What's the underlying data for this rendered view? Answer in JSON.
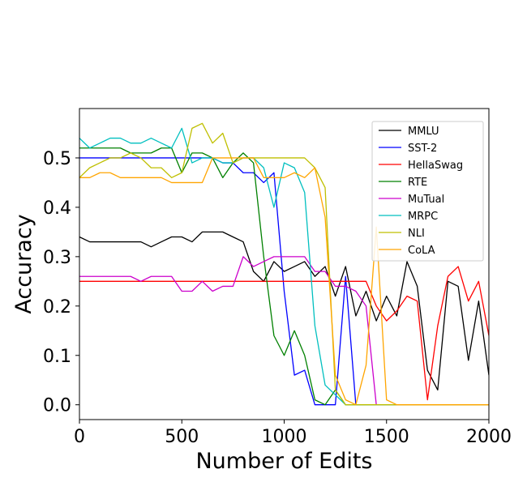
{
  "chart_data": {
    "type": "line",
    "title": "",
    "xlabel": "Number of Edits",
    "ylabel": "Accuracy",
    "xlim": [
      0,
      2000
    ],
    "ylim": [
      -0.03,
      0.6
    ],
    "xticks": [
      0,
      500,
      1000,
      1500,
      2000
    ],
    "xtick_labels": [
      "0",
      "500",
      "1000",
      "1500",
      "2000"
    ],
    "yticks": [
      0.0,
      0.1,
      0.2,
      0.3,
      0.4,
      0.5
    ],
    "ytick_labels": [
      "0.0",
      "0.1",
      "0.2",
      "0.3",
      "0.4",
      "0.5"
    ],
    "grid": false,
    "legend_position": "top-right",
    "series": [
      {
        "name": "MMLU",
        "color": "#000000",
        "x": [
          0,
          50,
          100,
          150,
          200,
          250,
          300,
          350,
          400,
          450,
          500,
          550,
          600,
          650,
          700,
          750,
          800,
          850,
          900,
          950,
          1000,
          1050,
          1100,
          1150,
          1200,
          1250,
          1300,
          1350,
          1400,
          1450,
          1500,
          1550,
          1600,
          1650,
          1700,
          1750,
          1800,
          1850,
          1900,
          1950,
          2000
        ],
        "y": [
          0.34,
          0.33,
          0.33,
          0.33,
          0.33,
          0.33,
          0.33,
          0.32,
          0.33,
          0.34,
          0.34,
          0.33,
          0.35,
          0.35,
          0.35,
          0.34,
          0.33,
          0.27,
          0.25,
          0.29,
          0.27,
          0.28,
          0.29,
          0.26,
          0.28,
          0.22,
          0.28,
          0.18,
          0.23,
          0.17,
          0.22,
          0.18,
          0.29,
          0.24,
          0.07,
          0.03,
          0.25,
          0.24,
          0.09,
          0.21,
          0.06
        ]
      },
      {
        "name": "SST-2",
        "color": "#0000ff",
        "x": [
          0,
          100,
          200,
          300,
          400,
          500,
          600,
          650,
          700,
          750,
          800,
          850,
          900,
          950,
          1000,
          1050,
          1100,
          1150,
          1200,
          1250,
          1300,
          1350,
          1400,
          1500,
          2000
        ],
        "y": [
          0.5,
          0.5,
          0.5,
          0.5,
          0.5,
          0.5,
          0.5,
          0.5,
          0.49,
          0.49,
          0.47,
          0.47,
          0.45,
          0.47,
          0.23,
          0.06,
          0.07,
          0.0,
          0.0,
          0.0,
          0.26,
          0.0,
          0.0,
          0.0,
          0.0
        ]
      },
      {
        "name": "HellaSwag",
        "color": "#ff0000",
        "x": [
          0,
          100,
          200,
          300,
          400,
          500,
          600,
          700,
          800,
          900,
          1000,
          1100,
          1200,
          1300,
          1400,
          1450,
          1500,
          1550,
          1600,
          1650,
          1700,
          1750,
          1800,
          1850,
          1900,
          1950,
          2000
        ],
        "y": [
          0.25,
          0.25,
          0.25,
          0.25,
          0.25,
          0.25,
          0.25,
          0.25,
          0.25,
          0.25,
          0.25,
          0.25,
          0.25,
          0.25,
          0.25,
          0.2,
          0.17,
          0.19,
          0.22,
          0.21,
          0.01,
          0.16,
          0.26,
          0.28,
          0.21,
          0.25,
          0.14
        ]
      },
      {
        "name": "RTE",
        "color": "#008000",
        "x": [
          0,
          50,
          100,
          150,
          200,
          250,
          300,
          350,
          400,
          450,
          500,
          550,
          600,
          650,
          700,
          750,
          800,
          850,
          900,
          950,
          1000,
          1050,
          1100,
          1150,
          1200,
          1250,
          1300,
          1350,
          1400,
          1500,
          2000
        ],
        "y": [
          0.52,
          0.52,
          0.52,
          0.52,
          0.52,
          0.51,
          0.51,
          0.51,
          0.52,
          0.52,
          0.47,
          0.51,
          0.51,
          0.5,
          0.46,
          0.49,
          0.51,
          0.49,
          0.3,
          0.14,
          0.1,
          0.15,
          0.1,
          0.01,
          0.0,
          0.03,
          0.0,
          0.0,
          0.0,
          0.0,
          0.0
        ]
      },
      {
        "name": "MuTual",
        "color": "#cc00cc",
        "x": [
          0,
          50,
          100,
          150,
          200,
          250,
          300,
          350,
          400,
          450,
          500,
          550,
          600,
          650,
          700,
          750,
          800,
          850,
          900,
          950,
          1000,
          1050,
          1100,
          1150,
          1200,
          1250,
          1300,
          1350,
          1400,
          1450,
          1500,
          2000
        ],
        "y": [
          0.26,
          0.26,
          0.26,
          0.26,
          0.26,
          0.26,
          0.25,
          0.26,
          0.26,
          0.26,
          0.23,
          0.23,
          0.25,
          0.23,
          0.24,
          0.24,
          0.3,
          0.28,
          0.29,
          0.3,
          0.3,
          0.3,
          0.3,
          0.27,
          0.27,
          0.24,
          0.24,
          0.23,
          0.2,
          0.0,
          0.0,
          0.0
        ]
      },
      {
        "name": "MRPC",
        "color": "#00bfbf",
        "x": [
          0,
          50,
          100,
          150,
          200,
          250,
          300,
          350,
          400,
          450,
          500,
          550,
          600,
          650,
          700,
          750,
          800,
          850,
          900,
          950,
          1000,
          1050,
          1100,
          1150,
          1200,
          1250,
          1300,
          1350,
          1400,
          1500,
          2000
        ],
        "y": [
          0.54,
          0.52,
          0.53,
          0.54,
          0.54,
          0.53,
          0.53,
          0.54,
          0.53,
          0.52,
          0.56,
          0.49,
          0.5,
          0.5,
          0.49,
          0.49,
          0.5,
          0.5,
          0.48,
          0.4,
          0.49,
          0.48,
          0.43,
          0.16,
          0.04,
          0.02,
          0.0,
          0.0,
          0.0,
          0.0,
          0.0
        ]
      },
      {
        "name": "NLI",
        "color": "#bfbf00",
        "x": [
          0,
          50,
          100,
          150,
          200,
          250,
          300,
          350,
          400,
          450,
          500,
          550,
          600,
          650,
          700,
          750,
          800,
          850,
          900,
          950,
          1000,
          1050,
          1100,
          1150,
          1200,
          1250,
          1300,
          1350,
          1400,
          1500,
          2000
        ],
        "y": [
          0.46,
          0.48,
          0.49,
          0.5,
          0.5,
          0.51,
          0.5,
          0.48,
          0.48,
          0.46,
          0.47,
          0.56,
          0.57,
          0.53,
          0.55,
          0.49,
          0.5,
          0.5,
          0.5,
          0.5,
          0.5,
          0.5,
          0.5,
          0.48,
          0.44,
          0.03,
          0.0,
          0.0,
          0.0,
          0.0,
          0.0
        ]
      },
      {
        "name": "CoLA",
        "color": "#ffa500",
        "x": [
          0,
          50,
          100,
          150,
          200,
          250,
          300,
          350,
          400,
          450,
          500,
          550,
          600,
          650,
          700,
          750,
          800,
          850,
          900,
          950,
          1000,
          1050,
          1100,
          1150,
          1200,
          1250,
          1300,
          1350,
          1400,
          1450,
          1500,
          1550,
          2000
        ],
        "y": [
          0.46,
          0.46,
          0.47,
          0.47,
          0.46,
          0.46,
          0.46,
          0.46,
          0.46,
          0.45,
          0.45,
          0.45,
          0.45,
          0.5,
          0.5,
          0.5,
          0.5,
          0.5,
          0.46,
          0.46,
          0.46,
          0.47,
          0.46,
          0.48,
          0.38,
          0.06,
          0.01,
          0.0,
          0.08,
          0.36,
          0.01,
          0.0,
          0.0
        ]
      }
    ]
  }
}
